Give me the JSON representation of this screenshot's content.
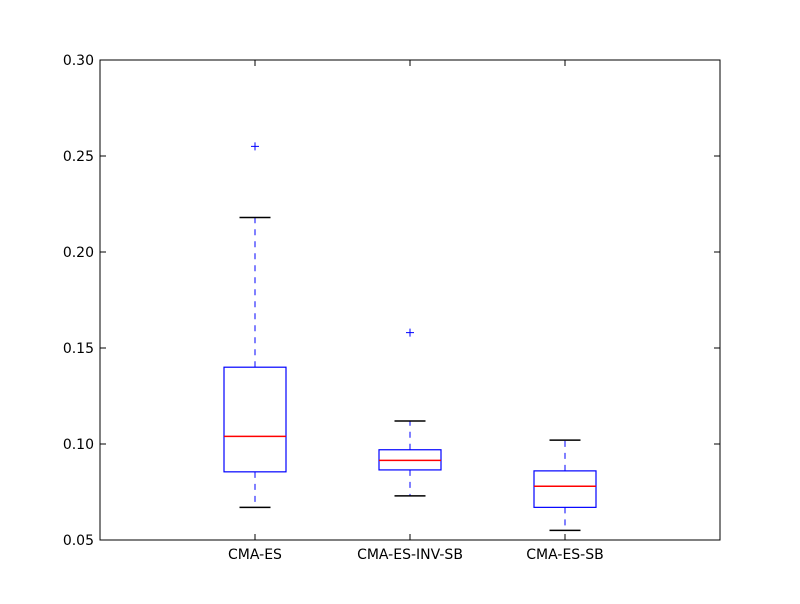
{
  "chart_data": {
    "type": "box",
    "title": "",
    "xlabel": "",
    "ylabel": "",
    "ylim": [
      0.05,
      0.3
    ],
    "yticks": [
      0.05,
      0.1,
      0.15,
      0.2,
      0.25,
      0.3
    ],
    "ytick_labels": [
      "0.05",
      "0.10",
      "0.15",
      "0.20",
      "0.25",
      "0.30"
    ],
    "grid": false,
    "colors": {
      "box": "#0000ff",
      "median": "#ff0000",
      "cap": "#000000",
      "flier": "#0000ff"
    },
    "categories": [
      "CMA-ES",
      "CMA-ES-INV-SB",
      "CMA-ES-SB"
    ],
    "boxes": [
      {
        "label": "CMA-ES",
        "whisker_low": 0.067,
        "q1": 0.0855,
        "median": 0.104,
        "q3": 0.14,
        "whisker_high": 0.218,
        "fliers": [
          0.255
        ]
      },
      {
        "label": "CMA-ES-INV-SB",
        "whisker_low": 0.073,
        "q1": 0.0865,
        "median": 0.0915,
        "q3": 0.097,
        "whisker_high": 0.112,
        "fliers": [
          0.158
        ]
      },
      {
        "label": "CMA-ES-SB",
        "whisker_low": 0.055,
        "q1": 0.067,
        "median": 0.078,
        "q3": 0.086,
        "whisker_high": 0.102,
        "fliers": []
      }
    ]
  }
}
